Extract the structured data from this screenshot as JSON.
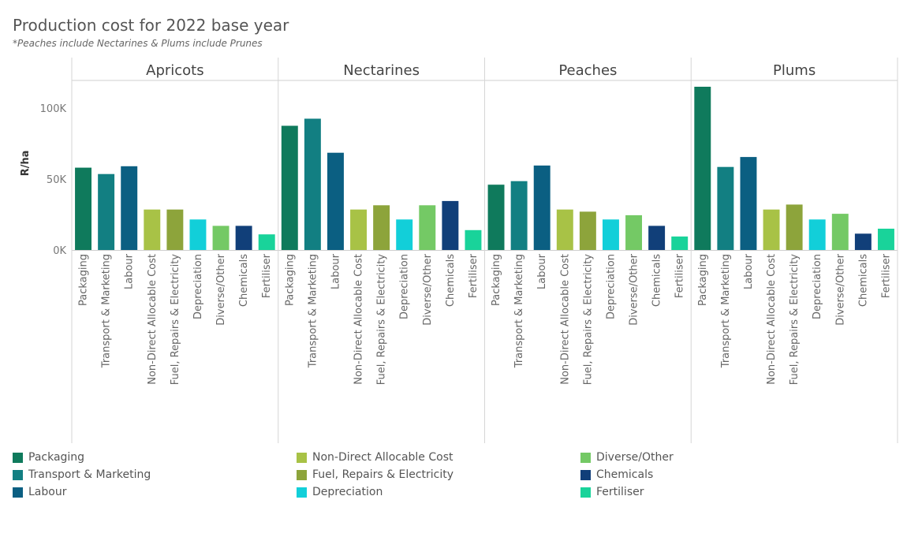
{
  "title": "Production cost for 2022 base year",
  "subtitle": "*Peaches include Nectarines & Plums include Prunes",
  "chart_data": {
    "type": "bar",
    "ylabel": "R/ha",
    "ylim": [
      0,
      120000
    ],
    "yticks": [
      0,
      50000,
      100000
    ],
    "ytick_labels": [
      "0K",
      "50K",
      "100K"
    ],
    "categories": [
      "Packaging",
      "Transport & Marketing",
      "Labour",
      "Non-Direct Allocable Cost",
      "Fuel, Repairs & Electricity",
      "Depreciation",
      "Diverse/Other",
      "Chemicals",
      "Fertiliser"
    ],
    "colors": [
      "#0f7a5c",
      "#127f82",
      "#0b5f82",
      "#a8c246",
      "#8da43b",
      "#12cfd9",
      "#74c965",
      "#113f79",
      "#19d39a"
    ],
    "panels": [
      {
        "name": "Apricots",
        "values": [
          58000,
          53500,
          59000,
          28500,
          28500,
          21500,
          17000,
          17000,
          11000
        ]
      },
      {
        "name": "Nectarines",
        "values": [
          87500,
          92500,
          68500,
          28500,
          31500,
          21500,
          31500,
          34500,
          14000
        ]
      },
      {
        "name": "Peaches",
        "values": [
          46000,
          48500,
          59500,
          28500,
          27000,
          21500,
          24500,
          17000,
          9500
        ]
      },
      {
        "name": "Plums",
        "values": [
          115000,
          58500,
          65500,
          28500,
          32000,
          21500,
          25500,
          11500,
          15000
        ]
      }
    ]
  },
  "legend": {
    "items": [
      {
        "label": "Packaging",
        "color": "#0f7a5c"
      },
      {
        "label": "Transport & Marketing",
        "color": "#127f82"
      },
      {
        "label": "Labour",
        "color": "#0b5f82"
      },
      {
        "label": "Non-Direct Allocable Cost",
        "color": "#a8c246"
      },
      {
        "label": "Fuel, Repairs & Electricity",
        "color": "#8da43b"
      },
      {
        "label": "Depreciation",
        "color": "#12cfd9"
      },
      {
        "label": "Diverse/Other",
        "color": "#74c965"
      },
      {
        "label": "Chemicals",
        "color": "#113f79"
      },
      {
        "label": "Fertiliser",
        "color": "#19d39a"
      }
    ]
  }
}
